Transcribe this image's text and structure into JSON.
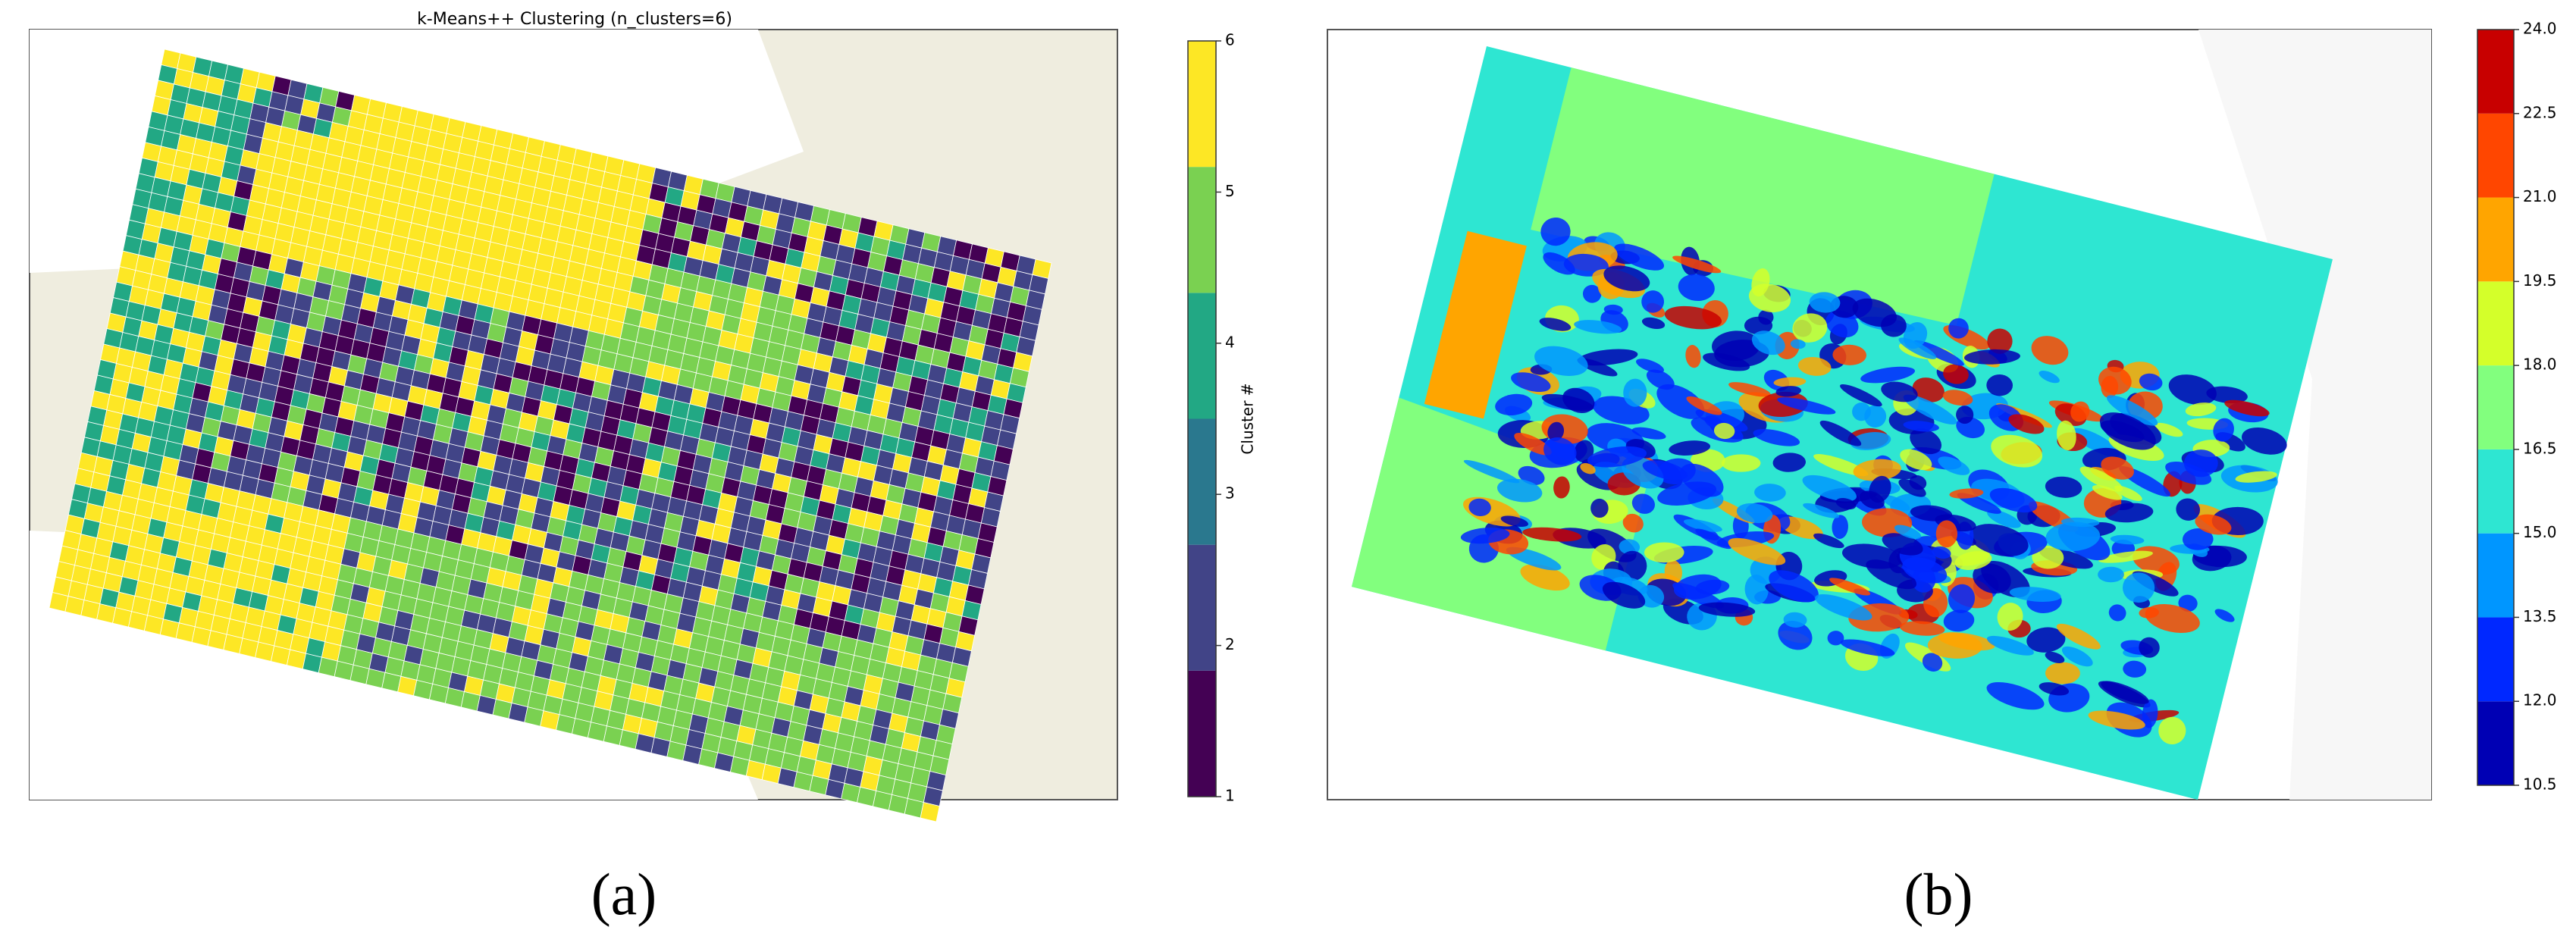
{
  "panels": [
    {
      "title": "k-Means++ Clustering (n_clusters=6)",
      "colorbar": {
        "label": "Cluster #",
        "lim": [
          1,
          6
        ],
        "ticks": [
          1,
          2,
          3,
          4,
          5,
          6
        ],
        "colors": [
          "#440154",
          "#414487",
          "#2a788e",
          "#22a884",
          "#7ad151",
          "#fde725"
        ]
      },
      "caption": "(a)"
    },
    {
      "colorbar": {
        "lim": [
          10.5,
          24
        ],
        "ticks": [
          10.5,
          {
            "value": 12,
            "label": "12.0"
          },
          13.5,
          {
            "value": 15,
            "label": "15.0"
          },
          16.5,
          {
            "value": 18,
            "label": "18.0"
          },
          19.5,
          {
            "value": 21,
            "label": "21.0"
          },
          22.5,
          {
            "value": 24,
            "label": "24.0"
          }
        ],
        "colors": [
          "#0000b4",
          "#0028ff",
          "#0096ff",
          "#2ee6d2",
          "#82ff7e",
          "#d4ff2a",
          "#ffa500",
          "#ff4600",
          "#c80000"
        ]
      },
      "caption": "(b)"
    }
  ]
}
